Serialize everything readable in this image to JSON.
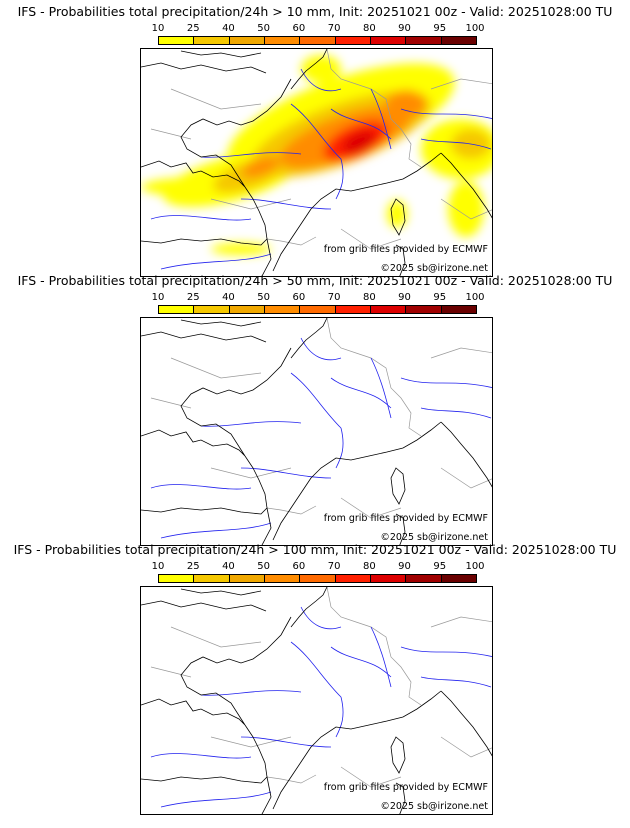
{
  "colorbar": {
    "ticks": [
      "10",
      "25",
      "40",
      "50",
      "60",
      "70",
      "80",
      "90",
      "95",
      "100"
    ],
    "colors": [
      "#ffff00",
      "#f5c800",
      "#f0a800",
      "#ff8c00",
      "#ff6a00",
      "#ff2000",
      "#dd0000",
      "#a00000",
      "#6a0000"
    ]
  },
  "credits": {
    "source": "from grib files provided by ECMWF",
    "copyright": "©2025 sb@irizone.net"
  },
  "panels": [
    {
      "title": "IFS - Probabilities total precipitation/24h > 10 mm, Init: 20251021 00z - Valid: 20251028:00 TU",
      "threshold_mm": 10,
      "has_precip": true
    },
    {
      "title": "IFS - Probabilities total precipitation/24h > 50 mm, Init: 20251021 00z - Valid: 20251028:00 TU",
      "threshold_mm": 50,
      "has_precip": false
    },
    {
      "title": "IFS - Probabilities total precipitation/24h > 100 mm, Init: 20251021 00z - Valid: 20251028:00 TU",
      "threshold_mm": 100,
      "has_precip": false
    }
  ]
}
